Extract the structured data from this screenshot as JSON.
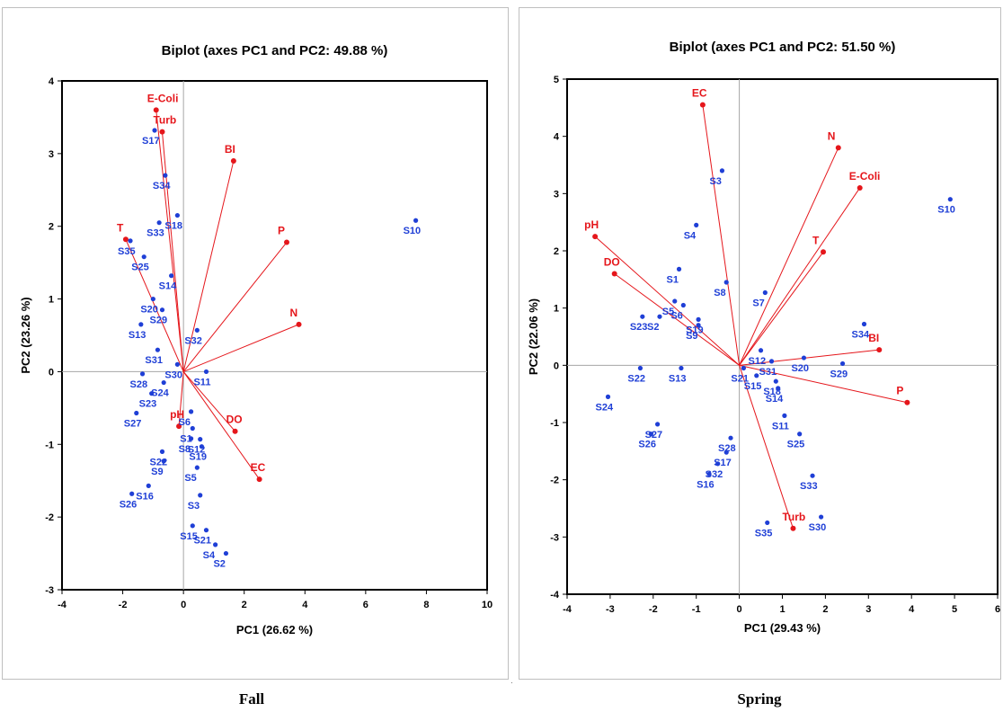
{
  "captions": {
    "left": "Fall",
    "right": "Spring"
  },
  "stray_mark": ".",
  "colors": {
    "observation": "#1f3fd6",
    "variable": "#e5161b",
    "axis": "#000000",
    "origin_line": "#a6a6a6"
  },
  "chart_data": [
    {
      "type": "scatter",
      "title": "Biplot (axes PC1 and PC2: 49.88 %)",
      "xlabel": "PC1 (26.62 %)",
      "ylabel": "PC2 (23.26 %)",
      "xlim": [
        -4,
        10
      ],
      "ylim": [
        -3,
        4
      ],
      "xticks": [
        -4,
        -2,
        0,
        2,
        4,
        6,
        8,
        10
      ],
      "yticks": [
        -3,
        -2,
        -1,
        0,
        1,
        2,
        3,
        4
      ],
      "grid": false,
      "observations": [
        {
          "label": "S10",
          "x": 7.65,
          "y": 2.08
        },
        {
          "label": "S17",
          "x": -0.95,
          "y": 3.32
        },
        {
          "label": "S34",
          "x": -0.6,
          "y": 2.7
        },
        {
          "label": "S18",
          "x": -0.2,
          "y": 2.15
        },
        {
          "label": "S33",
          "x": -0.8,
          "y": 2.05
        },
        {
          "label": "S35",
          "x": -1.75,
          "y": 1.8
        },
        {
          "label": "S25",
          "x": -1.3,
          "y": 1.58
        },
        {
          "label": "S14",
          "x": -0.4,
          "y": 1.32
        },
        {
          "label": "S20",
          "x": -1.0,
          "y": 1.0
        },
        {
          "label": "S29",
          "x": -0.7,
          "y": 0.85
        },
        {
          "label": "S32",
          "x": 0.45,
          "y": 0.57
        },
        {
          "label": "S13",
          "x": -1.4,
          "y": 0.65
        },
        {
          "label": "S31",
          "x": -0.85,
          "y": 0.3
        },
        {
          "label": "S30",
          "x": -0.2,
          "y": 0.1
        },
        {
          "label": "S11",
          "x": 0.75,
          "y": 0.0
        },
        {
          "label": "S28",
          "x": -1.35,
          "y": -0.03
        },
        {
          "label": "S24",
          "x": -0.65,
          "y": -0.15
        },
        {
          "label": "S23",
          "x": -1.05,
          "y": -0.3
        },
        {
          "label": "S27",
          "x": -1.55,
          "y": -0.57
        },
        {
          "label": "S6",
          "x": 0.25,
          "y": -0.55
        },
        {
          "label": "S1",
          "x": 0.3,
          "y": -0.78
        },
        {
          "label": "S8",
          "x": 0.25,
          "y": -0.92
        },
        {
          "label": "S12",
          "x": 0.55,
          "y": -0.93
        },
        {
          "label": "S19",
          "x": 0.6,
          "y": -1.03
        },
        {
          "label": "S22",
          "x": -0.7,
          "y": -1.1
        },
        {
          "label": "S9",
          "x": -0.65,
          "y": -1.23
        },
        {
          "label": "S16",
          "x": -1.15,
          "y": -1.57
        },
        {
          "label": "S5",
          "x": 0.45,
          "y": -1.32
        },
        {
          "label": "S26",
          "x": -1.7,
          "y": -1.68
        },
        {
          "label": "S3",
          "x": 0.55,
          "y": -1.7
        },
        {
          "label": "S15",
          "x": 0.3,
          "y": -2.12
        },
        {
          "label": "S21",
          "x": 0.75,
          "y": -2.18
        },
        {
          "label": "S4",
          "x": 1.05,
          "y": -2.38
        },
        {
          "label": "S2",
          "x": 1.4,
          "y": -2.5
        }
      ],
      "variables": [
        {
          "label": "E-Coli",
          "x": -0.9,
          "y": 3.6
        },
        {
          "label": "Turb",
          "x": -0.7,
          "y": 3.3
        },
        {
          "label": "BI",
          "x": 1.65,
          "y": 2.9
        },
        {
          "label": "T",
          "x": -1.9,
          "y": 1.82
        },
        {
          "label": "P",
          "x": 3.4,
          "y": 1.78
        },
        {
          "label": "N",
          "x": 3.8,
          "y": 0.65
        },
        {
          "label": "pH",
          "x": -0.15,
          "y": -0.75
        },
        {
          "label": "DO",
          "x": 1.7,
          "y": -0.82
        },
        {
          "label": "EC",
          "x": 2.5,
          "y": -1.48
        }
      ]
    },
    {
      "type": "scatter",
      "title": "Biplot (axes PC1 and PC2: 51.50 %)",
      "xlabel": "PC1 (29.43 %)",
      "ylabel": "PC2 (22.06 %)",
      "xlim": [
        -4,
        6
      ],
      "ylim": [
        -4,
        5
      ],
      "xticks": [
        -4,
        -3,
        -2,
        -1,
        0,
        1,
        2,
        3,
        4,
        5,
        6
      ],
      "yticks": [
        -4,
        -3,
        -2,
        -1,
        0,
        1,
        2,
        3,
        4,
        5
      ],
      "grid": false,
      "observations": [
        {
          "label": "S10",
          "x": 4.9,
          "y": 2.9
        },
        {
          "label": "S3",
          "x": -0.4,
          "y": 3.4
        },
        {
          "label": "S4",
          "x": -1.0,
          "y": 2.45
        },
        {
          "label": "S1",
          "x": -1.4,
          "y": 1.68
        },
        {
          "label": "S8",
          "x": -0.3,
          "y": 1.45
        },
        {
          "label": "S5",
          "x": -1.5,
          "y": 1.12
        },
        {
          "label": "S7",
          "x": 0.6,
          "y": 1.27
        },
        {
          "label": "S6",
          "x": -1.3,
          "y": 1.05
        },
        {
          "label": "S19",
          "x": -0.95,
          "y": 0.8
        },
        {
          "label": "S23",
          "x": -2.25,
          "y": 0.85
        },
        {
          "label": "S2",
          "x": -1.85,
          "y": 0.85
        },
        {
          "label": "S9",
          "x": -0.95,
          "y": 0.7
        },
        {
          "label": "S34",
          "x": 2.9,
          "y": 0.72
        },
        {
          "label": "S12",
          "x": 0.5,
          "y": 0.26
        },
        {
          "label": "S31",
          "x": 0.75,
          "y": 0.07
        },
        {
          "label": "S20",
          "x": 1.5,
          "y": 0.13
        },
        {
          "label": "S29",
          "x": 2.4,
          "y": 0.03
        },
        {
          "label": "S22",
          "x": -2.3,
          "y": -0.05
        },
        {
          "label": "S13",
          "x": -1.35,
          "y": -0.05
        },
        {
          "label": "S24",
          "x": -3.05,
          "y": -0.55
        },
        {
          "label": "S21",
          "x": 0.1,
          "y": -0.05
        },
        {
          "label": "S15",
          "x": 0.4,
          "y": -0.18
        },
        {
          "label": "S18",
          "x": 0.85,
          "y": -0.28
        },
        {
          "label": "S14",
          "x": 0.9,
          "y": -0.4
        },
        {
          "label": "S11",
          "x": 1.05,
          "y": -0.88
        },
        {
          "label": "S27",
          "x": -1.9,
          "y": -1.03
        },
        {
          "label": "S26",
          "x": -2.05,
          "y": -1.2
        },
        {
          "label": "S28",
          "x": -0.2,
          "y": -1.27
        },
        {
          "label": "S25",
          "x": 1.4,
          "y": -1.2
        },
        {
          "label": "S17",
          "x": -0.3,
          "y": -1.52
        },
        {
          "label": "S32",
          "x": -0.5,
          "y": -1.72
        },
        {
          "label": "S16",
          "x": -0.7,
          "y": -1.9
        },
        {
          "label": "S33",
          "x": 1.7,
          "y": -1.93
        },
        {
          "label": "S30",
          "x": 1.9,
          "y": -2.65
        },
        {
          "label": "S35",
          "x": 0.65,
          "y": -2.75
        }
      ],
      "variables": [
        {
          "label": "EC",
          "x": -0.85,
          "y": 4.55
        },
        {
          "label": "N",
          "x": 2.3,
          "y": 3.8
        },
        {
          "label": "E-Coli",
          "x": 2.8,
          "y": 3.1
        },
        {
          "label": "pH",
          "x": -3.35,
          "y": 2.25
        },
        {
          "label": "T",
          "x": 1.95,
          "y": 1.98
        },
        {
          "label": "DO",
          "x": -2.9,
          "y": 1.6
        },
        {
          "label": "BI",
          "x": 3.25,
          "y": 0.27
        },
        {
          "label": "P",
          "x": 3.9,
          "y": -0.65
        },
        {
          "label": "Turb",
          "x": 1.25,
          "y": -2.85
        }
      ]
    }
  ]
}
